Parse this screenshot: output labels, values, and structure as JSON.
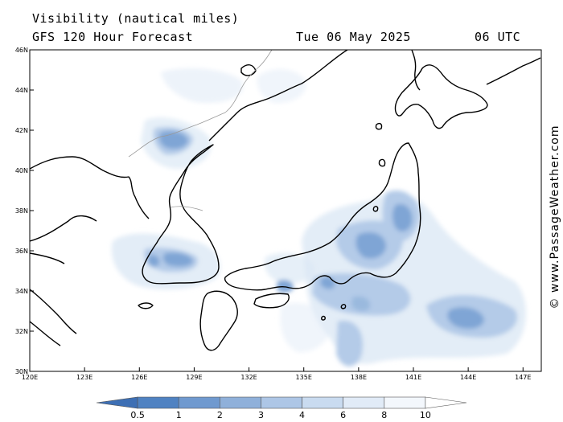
{
  "header": {
    "title": "Visibility (nautical miles)",
    "model": "GFS 120 Hour Forecast",
    "date": "Tue 06 May 2025",
    "time": "06 UTC"
  },
  "map": {
    "lon_range": [
      120,
      148
    ],
    "lat_range": [
      30,
      46
    ],
    "lon_ticks": [
      "120E",
      "123E",
      "126E",
      "129E",
      "132E",
      "135E",
      "138E",
      "141E",
      "144E",
      "147E"
    ],
    "lat_ticks": [
      "46N",
      "44N",
      "42N",
      "40N",
      "38N",
      "36N",
      "34N",
      "32N",
      "30N"
    ]
  },
  "legend": {
    "labels": [
      "0.5",
      "1",
      "2",
      "3",
      "4",
      "6",
      "8",
      "10"
    ],
    "colors": [
      "#3d6fb4",
      "#4f82c2",
      "#6f99cf",
      "#8fb0da",
      "#adc6e6",
      "#c9dbf0",
      "#e1ebf7",
      "#f3f7fc"
    ]
  },
  "copyright": "© www.PassageWeather.com"
}
